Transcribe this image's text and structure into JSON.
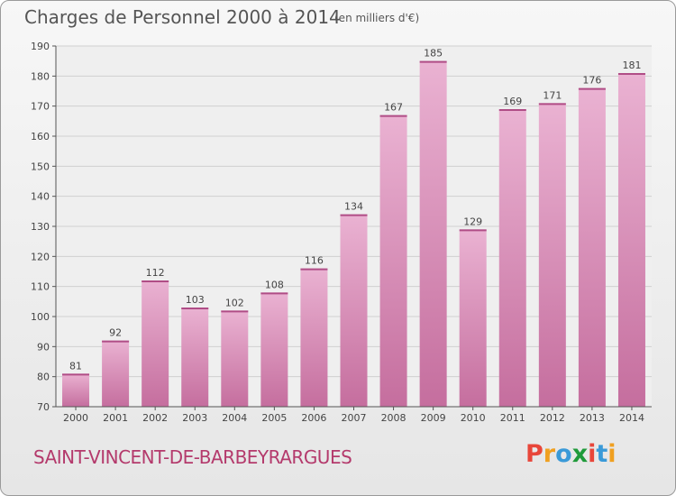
{
  "header": {
    "title": "Charges de Personnel 2000 à 2014",
    "subtitle": "(en milliers d'€)"
  },
  "footer": {
    "commune": "SAINT-VINCENT-DE-BARBEYRARGUES",
    "logo": "Proxiti",
    "logo_colors": [
      "#e8463a",
      "#f0a020",
      "#3a9ad8",
      "#1f9a3a",
      "#e8463a",
      "#3a9ad8",
      "#f0a020"
    ]
  },
  "colors": {
    "bar_light": "#eab2d2",
    "bar_dark": "#c56e9e",
    "bar_top": "#b04d86",
    "axis": "#555555",
    "grid": "#d0d0d0",
    "text": "#444444"
  },
  "chart_data": {
    "type": "bar",
    "categories": [
      "2000",
      "2001",
      "2002",
      "2003",
      "2004",
      "2005",
      "2006",
      "2007",
      "2008",
      "2009",
      "2010",
      "2011",
      "2012",
      "2013",
      "2014"
    ],
    "values": [
      81,
      92,
      112,
      103,
      102,
      108,
      116,
      134,
      167,
      185,
      129,
      169,
      171,
      176,
      181
    ],
    "yticks": [
      70,
      80,
      90,
      100,
      110,
      120,
      130,
      140,
      150,
      160,
      170,
      180,
      190
    ],
    "ylim": [
      70,
      190
    ],
    "grid": true,
    "legend": "none",
    "data_labels": true
  }
}
